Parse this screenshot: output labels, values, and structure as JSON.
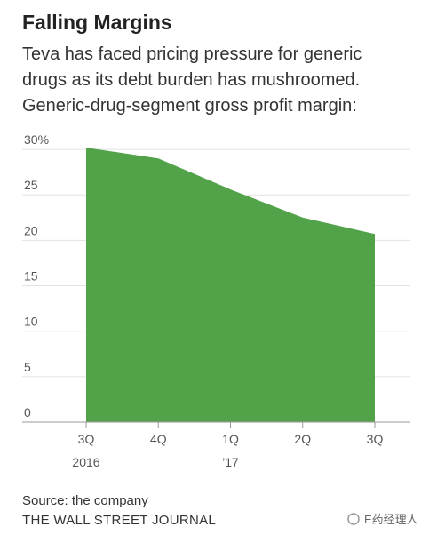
{
  "chart_data": {
    "type": "area",
    "title": "Falling Margins",
    "subtitle": [
      "Teva has faced pricing pressure for generic",
      "drugs as its debt burden has mushroomed.",
      "Generic-drug-segment gross profit margin:"
    ],
    "categories": [
      [
        "3Q",
        "2016"
      ],
      [
        "4Q"
      ],
      [
        "1Q",
        "’17"
      ],
      [
        "2Q"
      ],
      [
        "3Q"
      ]
    ],
    "values": [
      30.2,
      29.0,
      25.6,
      22.5,
      20.7
    ],
    "color": "#52a24a",
    "ylim": [
      0,
      32
    ],
    "yticks": [
      0,
      5,
      10,
      15,
      20,
      25,
      {
        "value": 30,
        "label": "30%"
      }
    ],
    "grid": true,
    "source": "Source: the company",
    "publisher": "THE WALL STREET JOURNAL",
    "watermark": "E药经理人"
  }
}
